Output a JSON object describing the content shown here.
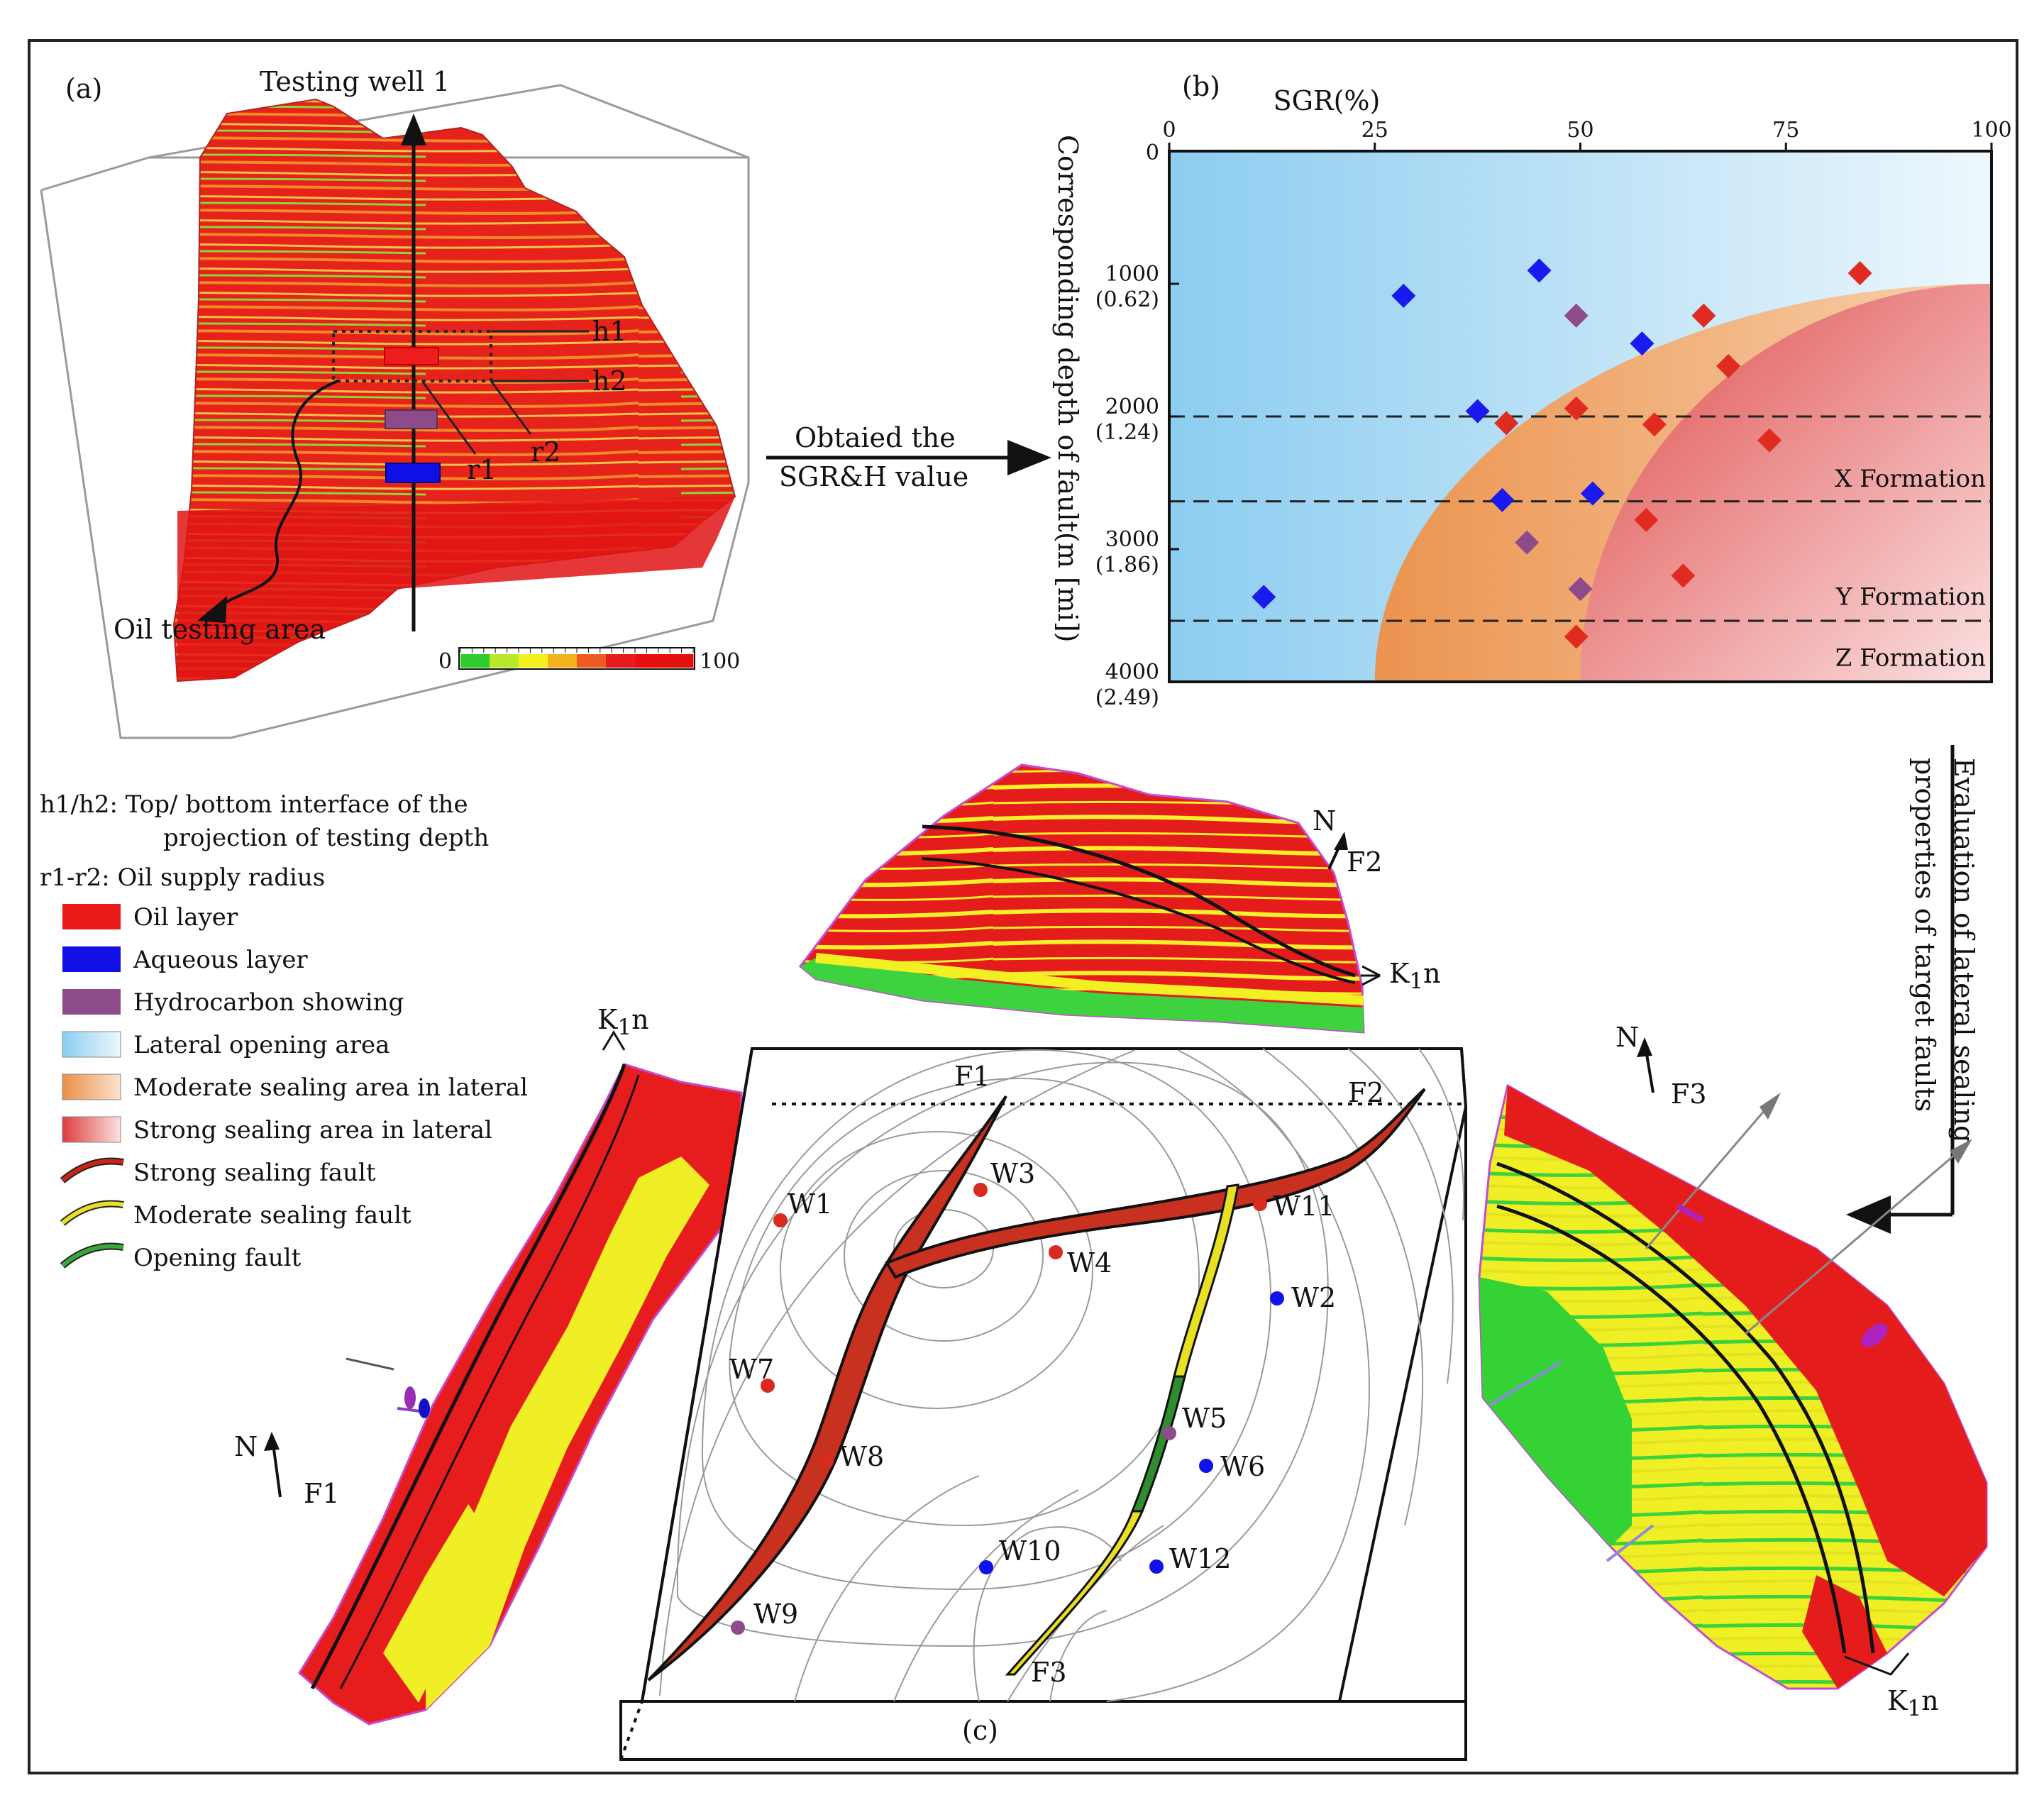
{
  "panels": {
    "a": "(a)",
    "b": "(b)",
    "c": "(c)"
  },
  "panel_a": {
    "well_label": "Testing  well  1",
    "h1": "h1",
    "h2": "h2",
    "r1": "r1",
    "r2": "r2",
    "oil_area": "Oil testing area",
    "colorbar_min": "0",
    "colorbar_max": "100",
    "colorbar_colors": [
      "#2ecc2e",
      "#b8e82a",
      "#f5f020",
      "#f5b21f",
      "#ee5a24",
      "#e81b1b",
      "#e60f0f",
      "#e31010"
    ]
  },
  "arrows": {
    "ab_line1": "Obtaied the",
    "ab_line2": "SGR&H value",
    "cb_line1": "Evaluation of lateral sealing",
    "cb_line2": "properties of target faults"
  },
  "chart_data": {
    "type": "scatter",
    "title": "SGR(%)",
    "xlabel": "SGR(%)",
    "ylabel": "Corresponding depth of fault(m [mi])",
    "xlim": [
      0,
      100
    ],
    "ylim": [
      0,
      4000
    ],
    "xticks": [
      "0",
      "25",
      "50",
      "75",
      "100"
    ],
    "yticks": [
      {
        "v": 0,
        "label": "0",
        "sub": ""
      },
      {
        "v": 1000,
        "label": "1000",
        "sub": "(0.62)"
      },
      {
        "v": 2000,
        "label": "2000",
        "sub": "(1.24)"
      },
      {
        "v": 3000,
        "label": "3000",
        "sub": "(1.86)"
      },
      {
        "v": 4000,
        "label": "4000",
        "sub": "(2.49)"
      }
    ],
    "formation_boundaries": [
      {
        "y": 2000
      },
      {
        "y": 2640
      },
      {
        "y": 3540
      }
    ],
    "formations": [
      {
        "name": "X  Formation",
        "y": 2530
      },
      {
        "name": "Y  Formation",
        "y": 3420
      },
      {
        "name": "Z  Formation",
        "y": 3880
      }
    ],
    "series": [
      {
        "name": "Aqueous layer",
        "color": "#1a1aee",
        "points": [
          [
            28.5,
            1090
          ],
          [
            45,
            900
          ],
          [
            57.5,
            1450
          ],
          [
            37.5,
            1960
          ],
          [
            40.5,
            2630
          ],
          [
            51.5,
            2580
          ],
          [
            11.5,
            3360
          ]
        ]
      },
      {
        "name": "Hydrocarbon showing",
        "color": "#8e4b8a",
        "points": [
          [
            49.5,
            1240
          ],
          [
            43.5,
            2950
          ],
          [
            50,
            3300
          ]
        ]
      },
      {
        "name": "Oil layer",
        "color": "#e02b20",
        "points": [
          [
            84,
            920
          ],
          [
            65,
            1240
          ],
          [
            68,
            1620
          ],
          [
            49.5,
            1940
          ],
          [
            41,
            2050
          ],
          [
            59,
            2060
          ],
          [
            73,
            2180
          ],
          [
            58,
            2780
          ],
          [
            62.5,
            3200
          ],
          [
            49.5,
            3660
          ]
        ]
      }
    ],
    "regions": [
      {
        "name": "Lateral opening area"
      },
      {
        "name": "Moderate sealing area in lateral"
      },
      {
        "name": "Strong sealing area in lateral"
      }
    ]
  },
  "legend": {
    "h_def1": "h1/h2: Top/ bottom interface of the",
    "h_def2": "projection of testing depth",
    "r_def": "r1-r2: Oil supply radius",
    "items": [
      {
        "label": "Oil  layer",
        "color": "#e81a1a"
      },
      {
        "label": "Aqueous  layer",
        "color": "#1010e6"
      },
      {
        "label": "Hydrocarbon  showing",
        "color": "#8e4b8a"
      },
      {
        "label": "Lateral  opening  area",
        "color": "#a9d9f2"
      },
      {
        "label": "Moderate  sealing  area  in  lateral",
        "color": "#f2a460"
      },
      {
        "label": "Strong  sealing  area  in  lateral",
        "color": "#e24b4b"
      },
      {
        "label": "Strong  sealing  fault",
        "color": "#c8241a"
      },
      {
        "label": "Moderate  sealing  fault",
        "color": "#e8e020"
      },
      {
        "label": "Opening  fault",
        "color": "#38a838"
      }
    ]
  },
  "panel_c": {
    "north": "N",
    "faults": [
      "F1",
      "F2",
      "F3"
    ],
    "horizon_main": "K",
    "horizon_sub": "1",
    "horizon_n": "n",
    "wells": [
      {
        "name": "W1",
        "type": "oil"
      },
      {
        "name": "W2",
        "type": "aqueous"
      },
      {
        "name": "W3",
        "type": "oil"
      },
      {
        "name": "W4",
        "type": "oil"
      },
      {
        "name": "W5",
        "type": "hydrocarbon"
      },
      {
        "name": "W6",
        "type": "aqueous"
      },
      {
        "name": "W7",
        "type": "oil"
      },
      {
        "name": "W8",
        "type": "oil"
      },
      {
        "name": "W9",
        "type": "hydrocarbon"
      },
      {
        "name": "W10",
        "type": "aqueous"
      },
      {
        "name": "W11",
        "type": "oil"
      },
      {
        "name": "W12",
        "type": "aqueous"
      }
    ]
  }
}
